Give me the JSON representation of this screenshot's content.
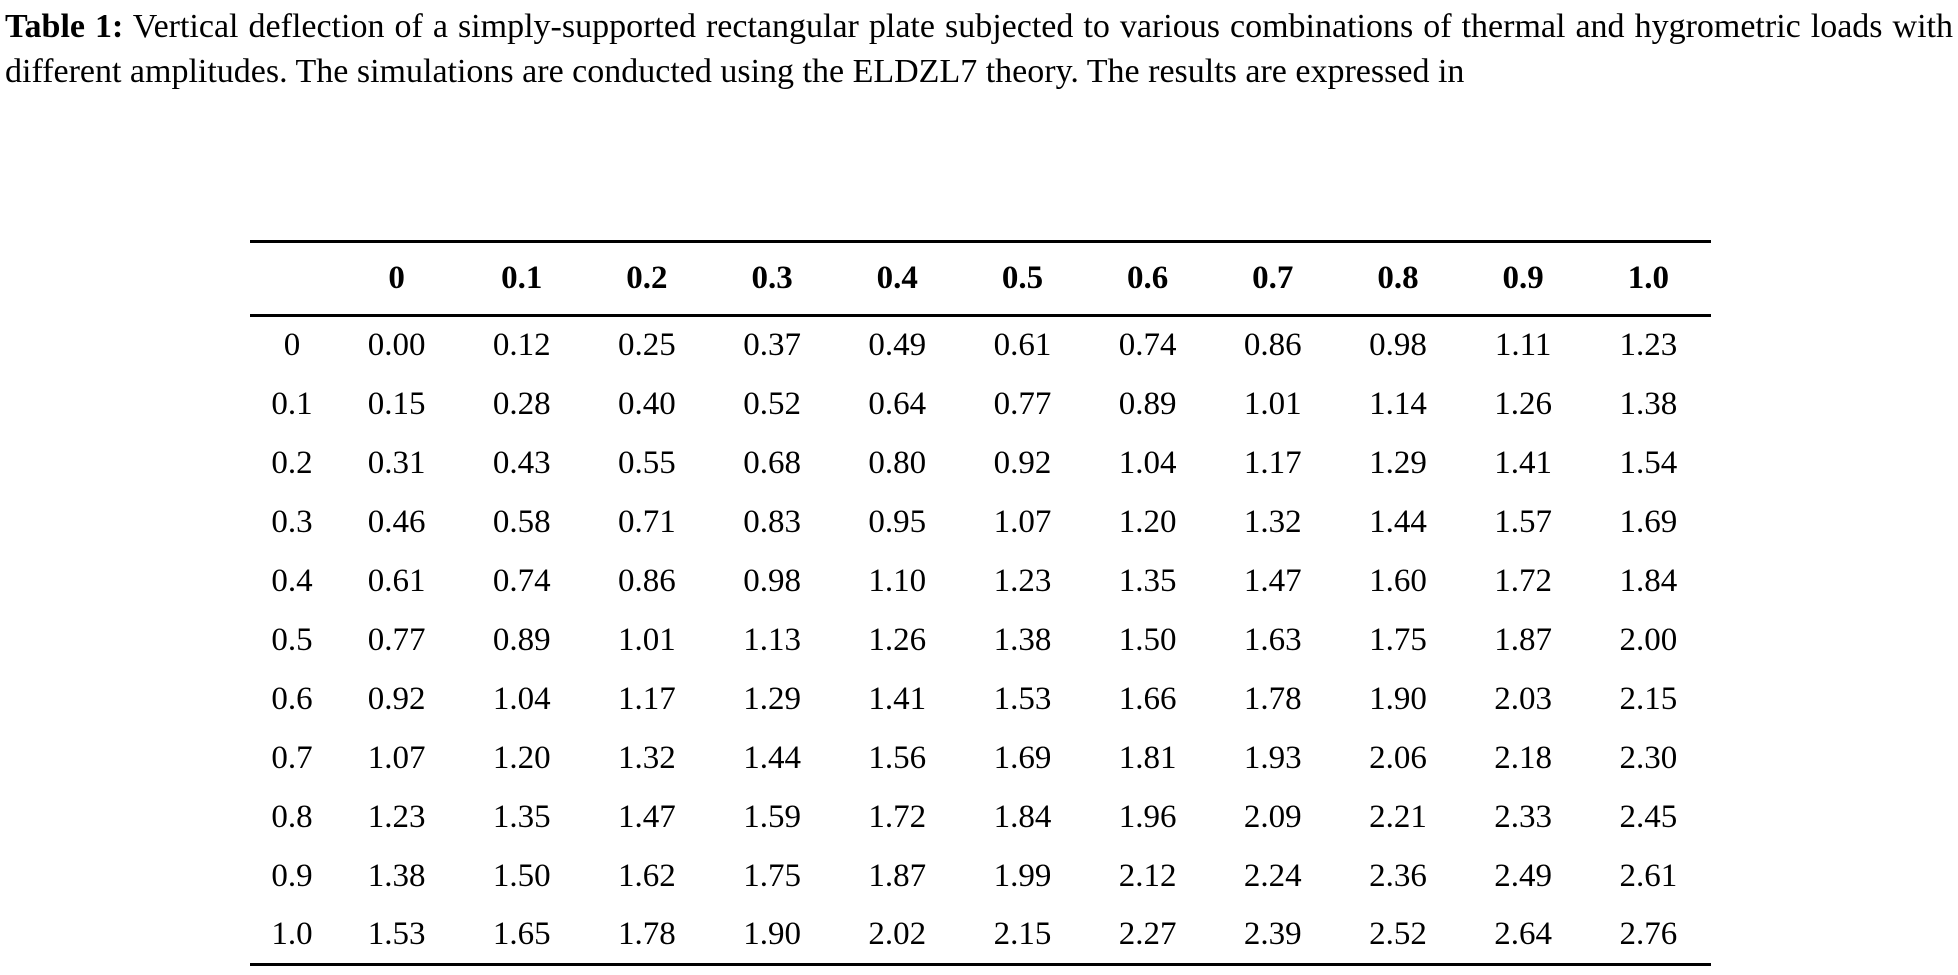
{
  "caption": {
    "label": "Table 1:",
    "text": "Vertical deflection of a simply-supported rectangular plate subjected to various combinations of thermal and hygrometric loads with different amplitudes. The simulations are conducted using the ELDZL7 theory. The results are expressed in"
  },
  "table": {
    "col_headers": [
      "",
      "0",
      "0.1",
      "0.2",
      "0.3",
      "0.4",
      "0.5",
      "0.6",
      "0.7",
      "0.8",
      "0.9",
      "1.0"
    ],
    "rows": [
      {
        "label": "0",
        "values": [
          "0.00",
          "0.12",
          "0.25",
          "0.37",
          "0.49",
          "0.61",
          "0.74",
          "0.86",
          "0.98",
          "1.11",
          "1.23"
        ]
      },
      {
        "label": "0.1",
        "values": [
          "0.15",
          "0.28",
          "0.40",
          "0.52",
          "0.64",
          "0.77",
          "0.89",
          "1.01",
          "1.14",
          "1.26",
          "1.38"
        ]
      },
      {
        "label": "0.2",
        "values": [
          "0.31",
          "0.43",
          "0.55",
          "0.68",
          "0.80",
          "0.92",
          "1.04",
          "1.17",
          "1.29",
          "1.41",
          "1.54"
        ]
      },
      {
        "label": "0.3",
        "values": [
          "0.46",
          "0.58",
          "0.71",
          "0.83",
          "0.95",
          "1.07",
          "1.20",
          "1.32",
          "1.44",
          "1.57",
          "1.69"
        ]
      },
      {
        "label": "0.4",
        "values": [
          "0.61",
          "0.74",
          "0.86",
          "0.98",
          "1.10",
          "1.23",
          "1.35",
          "1.47",
          "1.60",
          "1.72",
          "1.84"
        ]
      },
      {
        "label": "0.5",
        "values": [
          "0.77",
          "0.89",
          "1.01",
          "1.13",
          "1.26",
          "1.38",
          "1.50",
          "1.63",
          "1.75",
          "1.87",
          "2.00"
        ]
      },
      {
        "label": "0.6",
        "values": [
          "0.92",
          "1.04",
          "1.17",
          "1.29",
          "1.41",
          "1.53",
          "1.66",
          "1.78",
          "1.90",
          "2.03",
          "2.15"
        ]
      },
      {
        "label": "0.7",
        "values": [
          "1.07",
          "1.20",
          "1.32",
          "1.44",
          "1.56",
          "1.69",
          "1.81",
          "1.93",
          "2.06",
          "2.18",
          "2.30"
        ]
      },
      {
        "label": "0.8",
        "values": [
          "1.23",
          "1.35",
          "1.47",
          "1.59",
          "1.72",
          "1.84",
          "1.96",
          "2.09",
          "2.21",
          "2.33",
          "2.45"
        ]
      },
      {
        "label": "0.9",
        "values": [
          "1.38",
          "1.50",
          "1.62",
          "1.75",
          "1.87",
          "1.99",
          "2.12",
          "2.24",
          "2.36",
          "2.49",
          "2.61"
        ]
      },
      {
        "label": "1.0",
        "values": [
          "1.53",
          "1.65",
          "1.78",
          "1.90",
          "2.02",
          "2.15",
          "2.27",
          "2.39",
          "2.52",
          "2.64",
          "2.76"
        ]
      }
    ]
  },
  "colors": {
    "text": "#000000",
    "background": "#ffffff",
    "rule": "#000000"
  }
}
